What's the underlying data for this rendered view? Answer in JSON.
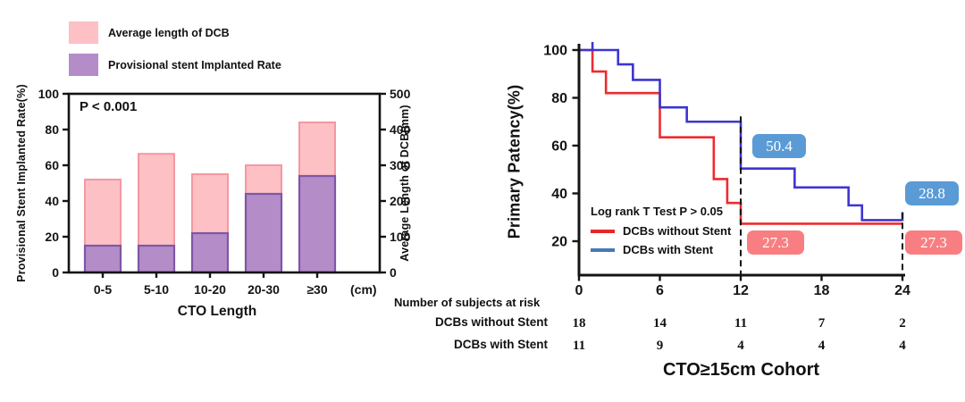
{
  "figure": {
    "p_value": "P < 0.001",
    "cohort_title": "CTO≥15cm Cohort"
  },
  "chart_data": [
    {
      "type": "bar",
      "categories": [
        "0-5",
        "5-10",
        "10-20",
        "20-30",
        "≥30"
      ],
      "x_unit_label": "(cm)",
      "xlabel": "CTO Length",
      "ylabel_left": "Provisional Stent Implanted Rate(%)",
      "ylabel_right": "Average Length of DCB(mm)",
      "yticks_left": [
        0,
        20,
        40,
        60,
        80,
        100
      ],
      "yticks_right": [
        0,
        100,
        200,
        300,
        400,
        500
      ],
      "ylim_left": [
        0,
        100
      ],
      "ylim_right": [
        0,
        500
      ],
      "annotation": "P < 0.001",
      "grid": false,
      "series": [
        {
          "name": "Average length of DCB",
          "axis": "right",
          "values": [
            260,
            332,
            275,
            300,
            420
          ],
          "fill": "#fcc0c5",
          "stroke": "#f598a0"
        },
        {
          "name": "Provisional stent Implanted Rate",
          "axis": "left",
          "values": [
            15,
            15,
            22,
            44,
            54
          ],
          "fill": "#b48cc8",
          "stroke": "#7e57a8"
        }
      ]
    },
    {
      "type": "line",
      "subtype": "kaplan_meier_step",
      "ylabel": "Primary Patency(%)",
      "xticks": [
        0,
        6,
        12,
        18,
        24
      ],
      "yticks": [
        20,
        40,
        60,
        80,
        100
      ],
      "xlim": [
        0,
        24
      ],
      "ylim": [
        6,
        105
      ],
      "stats_label": "Log rank T Test P > 0.05",
      "series": [
        {
          "name": "DCBs without Stent",
          "color": "#ee2b2e",
          "legend_color": "#e8262a",
          "steps": [
            [
              0,
              100
            ],
            [
              1,
              91
            ],
            [
              2,
              82
            ],
            [
              6,
              63.5
            ],
            [
              10,
              46
            ],
            [
              11,
              36
            ],
            [
              12,
              27.3
            ],
            [
              24,
              27.3
            ]
          ]
        },
        {
          "name": "DCBs with Stent",
          "color": "#3d35d0",
          "legend_color": "#4779b8",
          "steps": [
            [
              0,
              100
            ],
            [
              2.9,
              94
            ],
            [
              4,
              87.5
            ],
            [
              6,
              76
            ],
            [
              8,
              70
            ],
            [
              12,
              50.4
            ],
            [
              16,
              42.5
            ],
            [
              20,
              35
            ],
            [
              21,
              28.8
            ],
            [
              24,
              28.8
            ]
          ]
        }
      ],
      "censor_marks": [
        {
          "series": 1,
          "x": 1,
          "y": 100
        },
        {
          "series": 1,
          "x": 24,
          "y": 28.8
        }
      ],
      "dashed_lines_x": [
        12,
        24
      ],
      "annotations": [
        {
          "text": "50.4",
          "bg": "#5b9bd5"
        },
        {
          "text": "28.8",
          "bg": "#5b9bd5"
        },
        {
          "text": "27.3",
          "bg": "#f87e81"
        },
        {
          "text": "27.3",
          "bg": "#f87e81"
        }
      ],
      "risk_table": {
        "header": "Number of subjects at risk",
        "rows": [
          {
            "label": "DCBs without Stent",
            "values": [
              "18",
              "14",
              "11",
              "7",
              "2"
            ]
          },
          {
            "label": "DCBs with Stent",
            "values": [
              "11",
              "9",
              "4",
              "4",
              "4"
            ]
          }
        ]
      },
      "title": "CTO≥15cm Cohort"
    }
  ],
  "artifact_colors": [
    "#e0493d",
    "#58a55c",
    "#4285f4"
  ]
}
